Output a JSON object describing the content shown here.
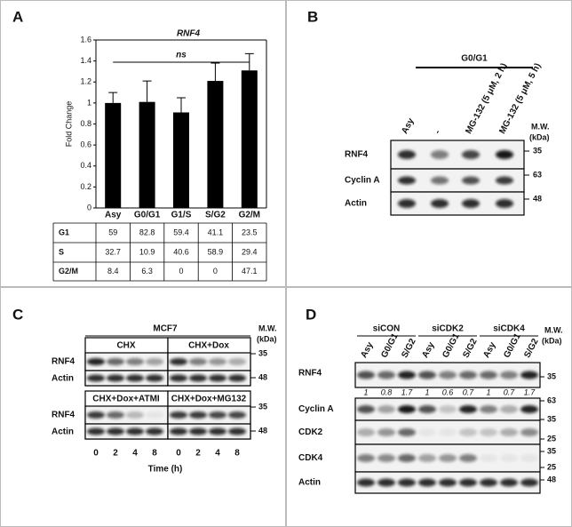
{
  "panel_a": {
    "label": "A"
  },
  "chart_data": {
    "type": "bar",
    "title": "RNF4",
    "annotation": "ns",
    "y_label": "Fold Change",
    "categories": [
      "Asy",
      "G0/G1",
      "G1/S",
      "S/G2",
      "G2/M"
    ],
    "values": [
      1.0,
      1.01,
      0.91,
      1.21,
      1.31
    ],
    "errors": [
      0.1,
      0.2,
      0.14,
      0.17,
      0.16
    ],
    "color": "#000000",
    "ylim": [
      0,
      1.6
    ],
    "yticks": [
      0,
      0.2,
      0.4,
      0.6,
      0.8,
      1,
      1.2,
      1.4,
      1.6
    ]
  },
  "table": {
    "row_labels": [
      "G1",
      "S",
      "G2/M"
    ],
    "rows": [
      [
        "59",
        "82.8",
        "59.4",
        "41.1",
        "23.5"
      ],
      [
        "32.7",
        "10.9",
        "40.6",
        "58.9",
        "29.4"
      ],
      [
        "8.4",
        "6.3",
        "0",
        "0",
        "47.1"
      ]
    ]
  },
  "panel_b": {
    "label": "B",
    "group": "G0/G1",
    "lanes": [
      "Asy",
      "-",
      "MG-132 (5 μM, 2 h)",
      "MG-132 (5 μM, 5 h)"
    ],
    "mw_label": [
      "M.W.",
      "(kDa)"
    ],
    "rows": [
      "RNF4",
      "Cyclin A",
      "Actin"
    ],
    "mw_markers": [
      "35",
      "63",
      "48"
    ]
  },
  "panel_c": {
    "label": "C",
    "cell_line": "MCF7",
    "mw_label": [
      "M.W.",
      "(kDa)"
    ],
    "blots": [
      {
        "title": "CHX",
        "rows": [
          "RNF4",
          "Actin"
        ]
      },
      {
        "title": "CHX+Dox"
      },
      {
        "title": "CHX+Dox+ATMI",
        "rows": [
          "RNF4",
          "Actin"
        ]
      },
      {
        "title": "CHX+Dox+MG132"
      }
    ],
    "mw_markers": [
      "35",
      "48",
      "35",
      "48"
    ],
    "times": [
      "0",
      "2",
      "4",
      "8",
      "0",
      "2",
      "4",
      "8"
    ],
    "x_label": "Time (h)"
  },
  "panel_d": {
    "label": "D",
    "groups": [
      "siCON",
      "siCDK2",
      "siCDK4"
    ],
    "lanes": [
      "Asy",
      "G0/G1",
      "S/G2",
      "Asy",
      "G0/G1",
      "S/G2",
      "Asy",
      "G0/G1",
      "S/G2"
    ],
    "rows": [
      "RNF4",
      "Cyclin A",
      "CDK2",
      "CDK4",
      "Actin"
    ],
    "quant": [
      "1",
      "0.8",
      "1.7",
      "1",
      "0.6",
      "0.7",
      "1",
      "0.7",
      "1.7"
    ],
    "mw_label": [
      "M.W.",
      "(kDa)"
    ],
    "mw_markers": [
      "35",
      "63",
      "35",
      "25",
      "35",
      "25",
      "48"
    ]
  }
}
